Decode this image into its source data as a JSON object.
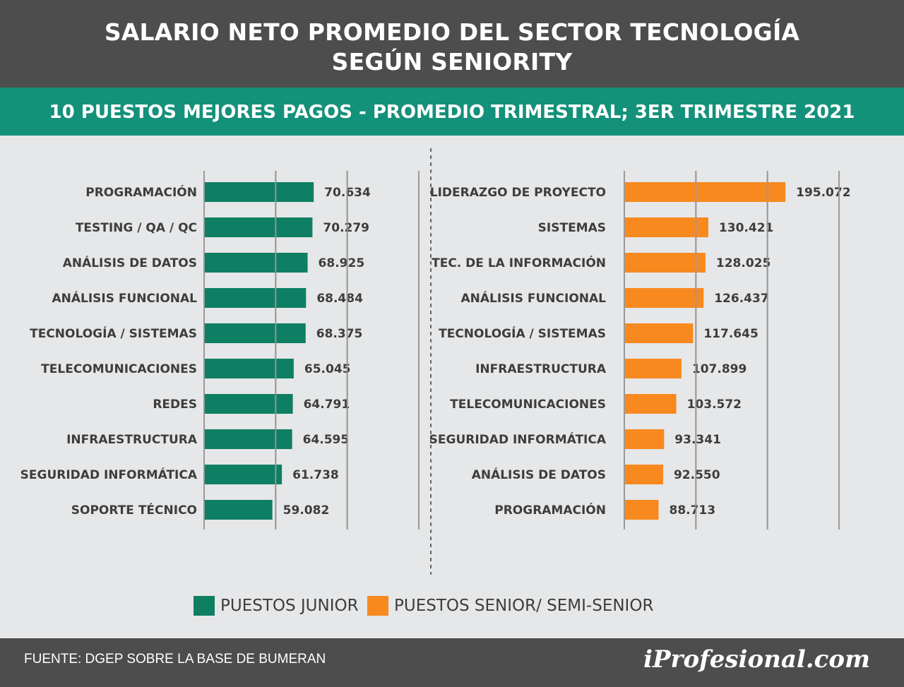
{
  "header": {
    "title_line1": "SALARIO NETO PROMEDIO DEL SECTOR TECNOLOGÍA",
    "title_line2": "SEGÚN SENIORITY",
    "subtitle": "10 PUESTOS MEJORES PAGOS - PROMEDIO TRIMESTRAL; 3ER TRIMESTRE 2021"
  },
  "chart_data": [
    {
      "type": "bar",
      "orientation": "horizontal",
      "series_name": "PUESTOS JUNIOR",
      "color": "#0f7f64",
      "categories": [
        "PROGRAMACIÓN",
        "TESTING / QA / QC",
        "ANÁLISIS DE DATOS",
        "ANÁLISIS FUNCIONAL",
        "TECNOLOGÍA / SISTEMAS",
        "TELECOMUNICACIONES",
        "REDES",
        "INFRAESTRUCTURA",
        "SEGURIDAD INFORMÁTICA",
        "SOPORTE TÉCNICO"
      ],
      "values": [
        70634,
        70279,
        68925,
        68484,
        68375,
        65045,
        64791,
        64595,
        61738,
        59082
      ],
      "value_labels": [
        "70.634",
        "70.279",
        "68.925",
        "68.484",
        "68.375",
        "65.045",
        "64.791",
        "64.595",
        "61.738",
        "59.082"
      ],
      "xlim": [
        40000,
        100000
      ],
      "grid": true
    },
    {
      "type": "bar",
      "orientation": "horizontal",
      "series_name": "PUESTOS SENIOR/ SEMI-SENIOR",
      "color": "#f7891f",
      "categories": [
        "LIDERAZGO DE PROYECTO",
        "SISTEMAS",
        "TEC. DE LA INFORMACIÓN",
        "ANÁLISIS FUNCIONAL",
        "TECNOLOGÍA / SISTEMAS",
        "INFRAESTRUCTURA",
        "TELECOMUNICACIONES",
        "SEGURIDAD INFORMÁTICA",
        "ANÁLISIS DE DATOS",
        "PROGRAMACIÓN"
      ],
      "values": [
        195072,
        130421,
        128025,
        126437,
        117645,
        107899,
        103572,
        93341,
        92550,
        88713
      ],
      "value_labels": [
        "195.072",
        "130.421",
        "128.025",
        "126.437",
        "117.645",
        "107.899",
        "103.572",
        "93.341",
        "92.550",
        "88.713"
      ],
      "xlim": [
        60000,
        240000
      ],
      "grid": true
    }
  ],
  "legend": [
    {
      "label": "PUESTOS JUNIOR",
      "color": "#0f7f64"
    },
    {
      "label": "PUESTOS SENIOR/ SEMI-SENIOR",
      "color": "#f7891f"
    }
  ],
  "footer": {
    "source": "FUENTE: DGEP SOBRE LA BASE DE BUMERAN",
    "brand": "iProfesional.com"
  }
}
